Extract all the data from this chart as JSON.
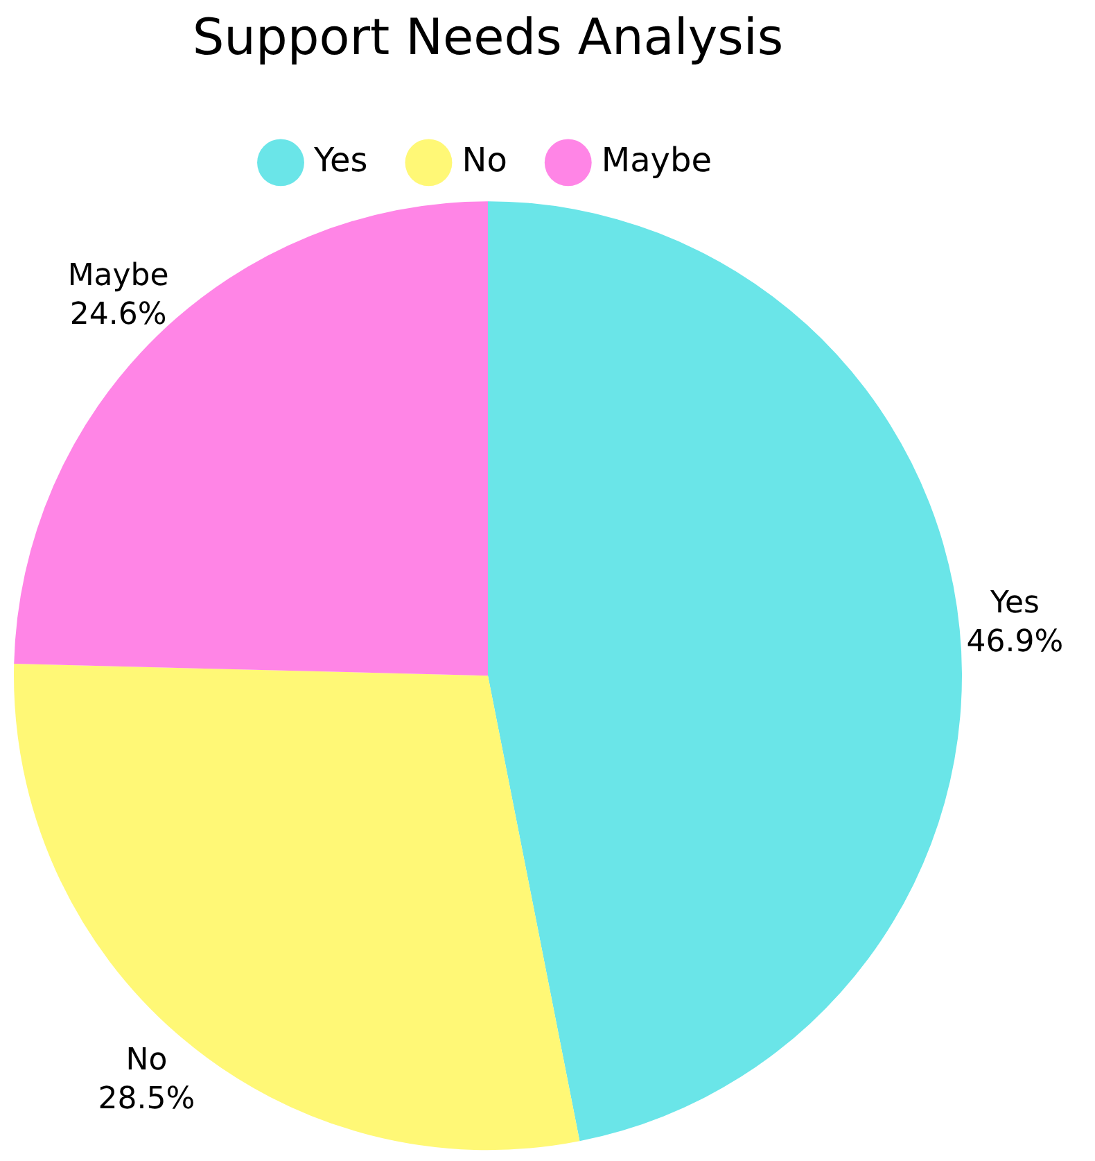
{
  "chart_data": {
    "type": "pie",
    "title": "Support Needs Analysis",
    "categories": [
      "Yes",
      "No",
      "Maybe"
    ],
    "values": [
      46.9,
      28.5,
      24.6
    ],
    "colors": [
      "#6ae5e8",
      "#fff876",
      "#ff85e6"
    ],
    "value_labels": [
      "46.9%",
      "28.5%",
      "24.6%"
    ],
    "legend": "top"
  }
}
